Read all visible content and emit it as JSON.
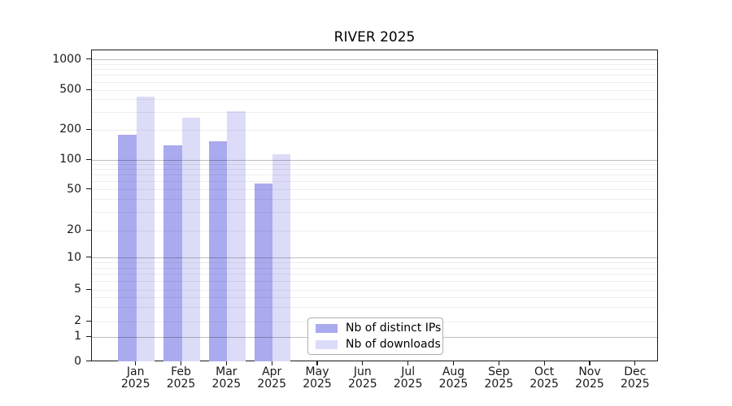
{
  "title": "RIVER 2025",
  "chart_data": {
    "type": "bar",
    "title": "RIVER 2025",
    "categories": [
      "Jan",
      "Feb",
      "Mar",
      "Apr",
      "May",
      "Jun",
      "Jul",
      "Aug",
      "Sep",
      "Oct",
      "Nov",
      "Dec"
    ],
    "year_label": "2025",
    "series": [
      {
        "name": "Nb of distinct IPs",
        "color": "#aaaaef",
        "values": [
          180,
          140,
          155,
          58,
          null,
          null,
          null,
          null,
          null,
          null,
          null,
          null
        ]
      },
      {
        "name": "Nb of downloads",
        "color": "#dcdcf8",
        "values": [
          430,
          265,
          305,
          115,
          null,
          null,
          null,
          null,
          null,
          null,
          null,
          null
        ]
      }
    ],
    "yscale": "symlog",
    "yticks": [
      0,
      1,
      2,
      5,
      10,
      20,
      50,
      100,
      200,
      500,
      1000
    ],
    "yticks_major_grid": [
      1,
      10,
      100,
      1000
    ],
    "ylim": [
      0,
      1250
    ],
    "xlabel": "",
    "ylabel": "",
    "grid": "horizontal major + minor log gridlines, drawn over bars",
    "legend_position": "lower center",
    "legend_entries": [
      "Nb of distinct IPs",
      "Nb of downloads"
    ]
  }
}
